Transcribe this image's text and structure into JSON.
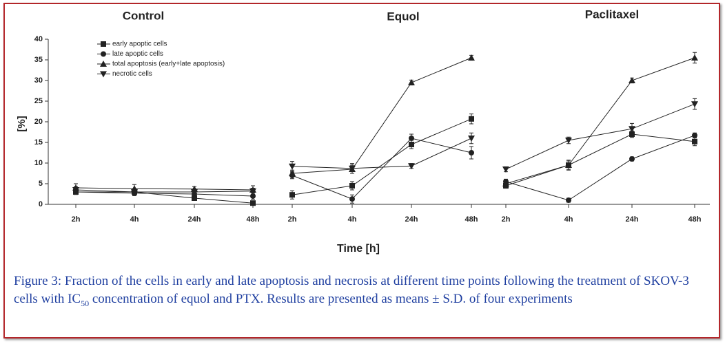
{
  "chart_data": {
    "type": "line",
    "groups": [
      {
        "title": "Control"
      },
      {
        "title": "Equol"
      },
      {
        "title": "Paclitaxel"
      }
    ],
    "categories": [
      "2h",
      "4h",
      "24h",
      "48h",
      "2h",
      "4h",
      "24h",
      "48h",
      "2h",
      "4h",
      "24h",
      "48h"
    ],
    "xlabel": "Time [h]",
    "ylabel": "[%]",
    "ylim": [
      0,
      40
    ],
    "yticks": [
      0,
      5,
      10,
      15,
      20,
      25,
      30,
      35,
      40
    ],
    "series": [
      {
        "name": "early apoptic cells",
        "color": "#222",
        "marker": "square",
        "values": [
          3,
          3,
          1.5,
          0.3,
          2.3,
          4.5,
          14.5,
          20.7,
          4.5,
          9.5,
          17,
          15.2
        ],
        "errors": [
          0.6,
          0.6,
          0.5,
          0.3,
          1,
          1,
          1,
          1.2,
          0.6,
          1,
          0.8,
          1
        ]
      },
      {
        "name": "late apoptic cells",
        "color": "#222",
        "marker": "circle",
        "values": [
          3,
          2.7,
          2.5,
          2,
          7,
          1.3,
          16,
          12.5,
          5.5,
          1,
          11,
          16.7
        ],
        "errors": [
          0.6,
          0.6,
          0.5,
          0.8,
          0.8,
          1,
          1,
          1.5,
          0.6,
          0.5,
          0.5,
          0.6
        ]
      },
      {
        "name": "total apoptosis (early+late apoptosis)",
        "color": "#222",
        "marker": "up",
        "values": [
          4,
          3.8,
          3.7,
          3.5,
          7.5,
          8.5,
          29.5,
          35.5,
          5,
          9.5,
          30,
          35.5
        ],
        "errors": [
          1,
          1,
          0.6,
          1,
          0.8,
          1,
          0.6,
          0.6,
          0.6,
          1.2,
          0.6,
          1.3
        ]
      },
      {
        "name": "necrotic cells",
        "color": "#222",
        "marker": "down",
        "values": [
          3.5,
          3,
          3,
          3.2,
          9.2,
          8.7,
          9.3,
          16,
          8.5,
          15.5,
          18.3,
          24.3
        ],
        "errors": [
          0.8,
          0.8,
          0.6,
          0.7,
          1.2,
          1.2,
          0.6,
          1.3,
          0.6,
          0.8,
          1.3,
          1.3
        ]
      }
    ]
  },
  "caption": {
    "parts": [
      "Figure 3: Fraction of the cells in early and late apoptosis and necrosis at different time points following the treatment of SKOV-3 cells with IC",
      "50",
      " concentration of equol and PTX. Results are presented as means ± S.D. of four experiments"
    ]
  }
}
